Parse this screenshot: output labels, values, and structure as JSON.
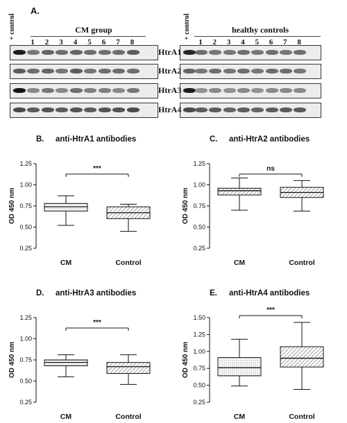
{
  "figure": {
    "panel_a_label": "A.",
    "cm_group_title": "CM group",
    "healthy_title": "healthy controls",
    "control_lane_label": "+ control",
    "lane_numbers": [
      "1",
      "2",
      "3",
      "4",
      "5",
      "6",
      "7",
      "8"
    ],
    "blot_rows": [
      "HtrA1",
      "HtrA2",
      "HtrA3",
      "HtrA4"
    ]
  },
  "chart_data": [
    {
      "type": "box",
      "panel": "B.",
      "title": "anti-HtrA1 antibodies",
      "ylabel": "OD 450 nm",
      "ylim": [
        0.25,
        1.25
      ],
      "yticks": [
        "0.25",
        "0.50",
        "0.75",
        "1.00",
        "1.25"
      ],
      "categories": [
        "CM",
        "Control"
      ],
      "boxes": [
        {
          "min": 0.52,
          "q1": 0.69,
          "median": 0.74,
          "q3": 0.78,
          "max": 0.87,
          "fill": "dotted"
        },
        {
          "min": 0.45,
          "q1": 0.6,
          "median": 0.67,
          "q3": 0.74,
          "max": 0.77,
          "fill": "hatched"
        }
      ],
      "significance": "***"
    },
    {
      "type": "box",
      "panel": "C.",
      "title": "anti-HtrA2 antibodies",
      "ylabel": "OD 450 nm",
      "ylim": [
        0.25,
        1.25
      ],
      "yticks": [
        "0.25",
        "0.50",
        "0.75",
        "1.00",
        "1.25"
      ],
      "categories": [
        "CM",
        "Control"
      ],
      "boxes": [
        {
          "min": 0.7,
          "q1": 0.88,
          "median": 0.93,
          "q3": 0.96,
          "max": 1.08,
          "fill": "hatched"
        },
        {
          "min": 0.69,
          "q1": 0.85,
          "median": 0.91,
          "q3": 0.97,
          "max": 1.05,
          "fill": "hatched"
        }
      ],
      "significance": "ns"
    },
    {
      "type": "box",
      "panel": "D.",
      "title": "anti-HtrA3  antibodies",
      "ylabel": "OD 450 nm",
      "ylim": [
        0.25,
        1.25
      ],
      "yticks": [
        "0.25",
        "0.50",
        "0.75",
        "1.00",
        "1.25"
      ],
      "categories": [
        "CM",
        "Control"
      ],
      "boxes": [
        {
          "min": 0.55,
          "q1": 0.68,
          "median": 0.72,
          "q3": 0.75,
          "max": 0.81,
          "fill": "dotted"
        },
        {
          "min": 0.46,
          "q1": 0.59,
          "median": 0.67,
          "q3": 0.72,
          "max": 0.81,
          "fill": "hatched"
        }
      ],
      "significance": "***"
    },
    {
      "type": "box",
      "panel": "E.",
      "title": "anti-HtrA4 antibodies",
      "ylabel": "OD 450 nm",
      "ylim": [
        0.25,
        1.5
      ],
      "yticks": [
        "0.25",
        "0.50",
        "0.75",
        "1.00",
        "1.25",
        "1.50"
      ],
      "categories": [
        "CM",
        "Control"
      ],
      "boxes": [
        {
          "min": 0.49,
          "q1": 0.64,
          "median": 0.76,
          "q3": 0.91,
          "max": 1.18,
          "fill": "dotted"
        },
        {
          "min": 0.44,
          "q1": 0.77,
          "median": 0.9,
          "q3": 1.07,
          "max": 1.43,
          "fill": "hatched"
        }
      ],
      "significance": "***"
    }
  ]
}
